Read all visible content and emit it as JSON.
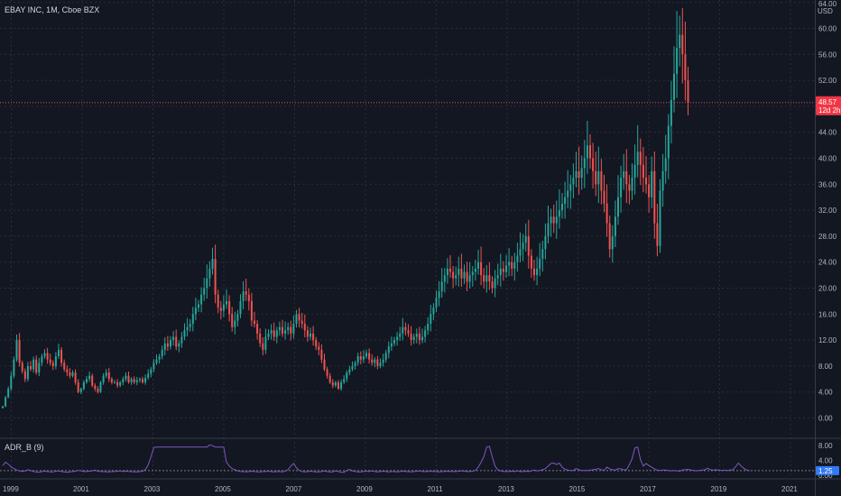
{
  "header": {
    "title": "EBAY INC, 1M, Cboe BZX"
  },
  "indicator": {
    "name": "ADR_B (9)",
    "last_value": "1.25"
  },
  "price_axis": {
    "unit": "USD"
  },
  "colors": {
    "background": "#131722",
    "grid": "#2a2e39",
    "up": "#26a69a",
    "down": "#ef5350",
    "adr_line": "#7e57c2",
    "axis_text": "#b2b5be",
    "current_price_line": "#ef5350",
    "badge_bg": "#f23645",
    "adr_badge_bg": "#3179f5"
  },
  "price_badge": {
    "price": "48.57",
    "countdown": "12d 2h"
  },
  "chart_data": [
    {
      "type": "candlestick",
      "title": "EBAY INC, 1M, Cboe BZX",
      "interval": "1M",
      "ylim": [
        -1,
        64
      ],
      "y_ticks": [
        "0.00",
        "4.00",
        "8.00",
        "12.00",
        "16.00",
        "20.00",
        "24.00",
        "28.00",
        "32.00",
        "36.00",
        "40.00",
        "44.00",
        "48.00",
        "52.00",
        "56.00",
        "60.00",
        "64.00"
      ],
      "x_ticks": [
        "1999",
        "2001",
        "2003",
        "2005",
        "2007",
        "2009",
        "2011",
        "2013",
        "2015",
        "2017",
        "2019",
        "2021"
      ],
      "grid": true,
      "last_price": 48.57,
      "x_start": "1998-10",
      "closes": [
        1.8,
        3.2,
        4.5,
        6.5,
        9.0,
        12.0,
        8.5,
        7.2,
        6.0,
        8.0,
        7.5,
        9.0,
        7.0,
        8.5,
        9.5,
        10.0,
        9.0,
        8.5,
        8.0,
        9.5,
        10.5,
        8.5,
        7.5,
        7.0,
        6.5,
        7.0,
        5.5,
        4.0,
        4.5,
        5.5,
        6.0,
        6.5,
        5.0,
        4.5,
        4.0,
        5.5,
        6.5,
        7.0,
        6.0,
        5.5,
        5.5,
        5.0,
        5.5,
        6.0,
        6.5,
        5.5,
        6.0,
        5.5,
        5.8,
        6.0,
        5.5,
        6.2,
        6.8,
        7.5,
        8.5,
        9.0,
        9.5,
        10.5,
        11.5,
        11.0,
        12.0,
        12.5,
        11.0,
        11.5,
        12.5,
        13.5,
        14.0,
        14.5,
        16.0,
        17.0,
        17.5,
        19.0,
        20.0,
        21.5,
        23.0,
        24.5,
        19.0,
        17.0,
        16.5,
        17.5,
        18.0,
        16.0,
        14.0,
        15.0,
        16.0,
        18.0,
        19.5,
        19.0,
        18.0,
        15.0,
        14.5,
        13.0,
        11.5,
        10.5,
        12.5,
        13.0,
        13.5,
        12.5,
        13.5,
        14.0,
        13.0,
        13.5,
        14.0,
        13.0,
        14.5,
        16.0,
        15.0,
        14.5,
        13.5,
        12.5,
        13.0,
        12.0,
        11.0,
        10.5,
        9.0,
        7.5,
        6.5,
        5.5,
        5.0,
        5.5,
        4.5,
        5.5,
        6.0,
        7.0,
        7.5,
        8.0,
        8.5,
        9.5,
        9.0,
        9.5,
        10.0,
        9.0,
        8.5,
        9.0,
        8.0,
        8.5,
        9.0,
        10.0,
        11.0,
        11.5,
        12.0,
        12.5,
        13.0,
        14.0,
        13.5,
        13.0,
        12.0,
        12.5,
        13.0,
        12.0,
        12.5,
        13.5,
        14.5,
        16.0,
        17.0,
        18.5,
        19.5,
        21.0,
        22.0,
        23.0,
        22.5,
        21.5,
        22.0,
        23.0,
        21.5,
        22.5,
        21.0,
        22.0,
        22.5,
        23.0,
        24.0,
        22.0,
        21.0,
        22.0,
        21.0,
        20.0,
        21.5,
        22.0,
        23.0,
        22.5,
        23.5,
        24.0,
        23.0,
        24.0,
        25.0,
        26.0,
        27.0,
        28.0,
        25.0,
        23.0,
        22.0,
        23.0,
        24.5,
        26.0,
        28.0,
        30.0,
        31.0,
        30.0,
        31.0,
        32.0,
        33.0,
        34.0,
        35.0,
        36.0,
        37.0,
        38.0,
        37.0,
        38.5,
        40.0,
        42.0,
        40.0,
        38.0,
        36.0,
        38.0,
        35.0,
        33.0,
        30.0,
        26.0,
        28.0,
        31.0,
        34.0,
        37.0,
        38.0,
        36.0,
        35.0,
        37.0,
        39.0,
        41.0,
        39.0,
        37.0,
        36.0,
        34.0,
        38.0,
        30.0,
        26.5,
        35.0,
        38.0,
        40.0,
        45.0,
        49.0,
        53.0,
        57.0,
        59.0,
        56.0,
        52.0,
        48.57
      ]
    },
    {
      "type": "line",
      "name": "ADR_B (9)",
      "ylim": [
        0,
        9
      ],
      "y_ticks": [
        "0.00",
        "4.00",
        "8.00"
      ],
      "last_value": 1.25,
      "values": [
        2.6,
        3.5,
        3.0,
        2.2,
        1.8,
        1.4,
        1.2,
        1.0,
        1.2,
        1.5,
        1.3,
        1.0,
        0.9,
        0.8,
        1.0,
        1.1,
        1.0,
        0.9,
        0.9,
        1.1,
        1.2,
        1.0,
        0.9,
        0.8,
        0.9,
        1.0,
        1.1,
        1.3,
        1.2,
        1.0,
        1.0,
        1.1,
        1.2,
        1.4,
        1.1,
        1.0,
        1.0,
        0.9,
        0.9,
        1.0,
        1.0,
        1.1,
        1.2,
        1.0,
        1.1,
        1.0,
        1.0,
        0.9,
        0.9,
        1.0,
        1.1,
        1.5,
        2.8,
        5.0,
        7.5,
        7.6,
        7.6,
        7.6,
        7.6,
        7.6,
        7.6,
        7.6,
        7.6,
        7.6,
        7.6,
        7.6,
        7.6,
        7.6,
        7.6,
        7.6,
        7.6,
        7.6,
        7.6,
        7.6,
        8.2,
        8.0,
        7.6,
        7.6,
        7.6,
        7.6,
        3.5,
        2.5,
        1.8,
        1.5,
        1.2,
        1.0,
        1.0,
        0.9,
        1.0,
        1.1,
        1.0,
        0.9,
        0.9,
        1.0,
        1.0,
        1.1,
        1.0,
        0.9,
        1.0,
        1.0,
        0.9,
        1.1,
        1.5,
        2.5,
        3.2,
        2.0,
        1.3,
        1.0,
        0.9,
        1.0,
        1.1,
        1.0,
        0.9,
        0.9,
        1.0,
        1.2,
        1.0,
        0.9,
        0.9,
        1.2,
        1.0,
        0.8,
        0.8,
        1.3,
        1.6,
        1.2,
        1.0,
        0.9,
        0.9,
        1.0,
        1.1,
        1.0,
        1.2,
        1.0,
        0.9,
        1.0,
        1.1,
        1.0,
        0.9,
        1.0,
        1.0,
        0.9,
        1.0,
        1.1,
        1.0,
        1.0,
        0.9,
        1.0,
        1.1,
        1.2,
        1.0,
        1.0,
        1.0,
        1.1,
        1.0,
        1.0,
        0.9,
        1.0,
        1.0,
        1.1,
        1.0,
        1.0,
        1.0,
        1.1,
        1.2,
        1.1,
        1.0,
        1.0,
        1.1,
        1.3,
        2.2,
        3.5,
        5.0,
        7.6,
        7.8,
        5.0,
        2.5,
        1.5,
        1.2,
        1.0,
        1.0,
        1.0,
        1.1,
        1.0,
        1.2,
        1.0,
        1.0,
        1.1,
        1.0,
        1.2,
        1.4,
        1.2,
        1.3,
        1.5,
        1.8,
        2.5,
        3.2,
        3.3,
        2.9,
        3.3,
        2.2,
        1.6,
        1.4,
        1.3,
        1.3,
        1.8,
        1.5,
        1.3,
        1.3,
        1.3,
        1.4,
        1.5,
        1.6,
        1.8,
        1.5,
        1.3,
        2.2,
        1.7,
        1.5,
        1.4,
        1.8,
        1.7,
        1.5,
        1.5,
        2.8,
        4.5,
        7.4,
        7.6,
        4.2,
        2.5,
        3.2,
        2.6,
        2.2,
        1.7,
        1.4,
        1.3,
        1.4,
        1.4,
        1.3,
        1.2,
        1.3,
        1.2,
        1.1,
        1.4,
        1.5,
        1.6,
        1.4,
        1.3,
        1.2,
        1.3,
        1.4,
        1.5,
        1.9,
        1.5,
        1.4,
        1.5,
        1.4,
        1.3,
        1.4,
        1.3,
        1.4,
        1.5,
        2.3,
        3.3,
        2.5,
        1.8,
        1.4,
        1.25
      ]
    }
  ]
}
